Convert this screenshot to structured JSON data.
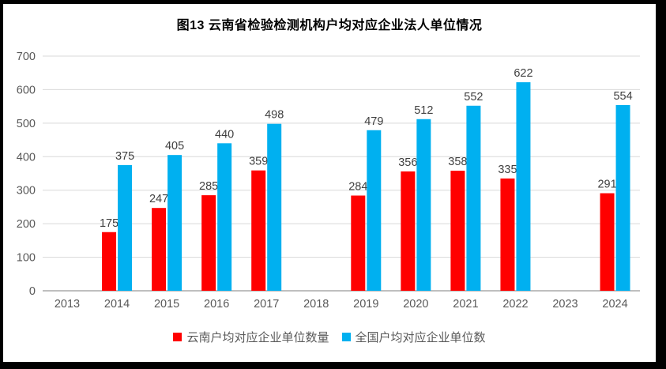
{
  "chart": {
    "title": "图13  云南省检验检测机构户均对应企业法人单位情况"
  },
  "chart_data": {
    "type": "bar",
    "title": "图13  云南省检验检测机构户均对应企业法人单位情况",
    "categories": [
      "2013",
      "2014",
      "2015",
      "2016",
      "2017",
      "2018",
      "2019",
      "2020",
      "2021",
      "2022",
      "2023",
      "2024"
    ],
    "series": [
      {
        "name": "云南户均对应企业单位数量",
        "color": "#FF0000",
        "values": [
          null,
          175,
          247,
          285,
          359,
          null,
          284,
          356,
          358,
          335,
          null,
          291
        ]
      },
      {
        "name": "全国户均对应企业单位数",
        "color": "#00B0F0",
        "values": [
          null,
          375,
          405,
          440,
          498,
          null,
          479,
          512,
          552,
          622,
          null,
          554
        ]
      }
    ],
    "xlabel": "",
    "ylabel": "",
    "ylim": [
      0,
      700
    ],
    "y_ticks": [
      0,
      100,
      200,
      300,
      400,
      500,
      600,
      700
    ],
    "grid": true,
    "legend_position": "bottom",
    "data_labels": true
  },
  "style": {
    "grid_color": "#D9D9D9",
    "axis_line_color": "#BFBFBF",
    "tick_label_color": "#595959",
    "data_label_color": "#404040",
    "background": "#ffffff",
    "frame_color": "#000000"
  }
}
